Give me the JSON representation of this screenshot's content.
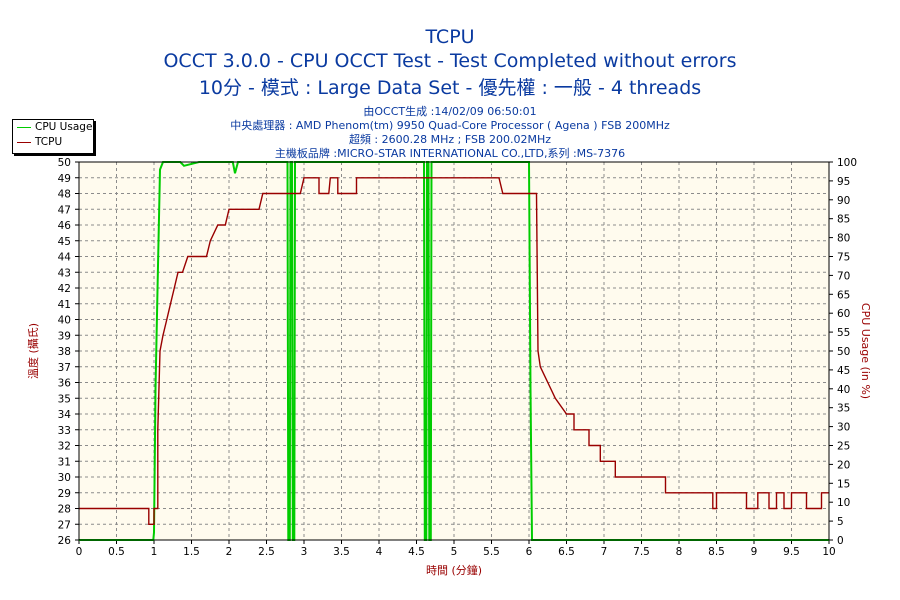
{
  "chart_data": {
    "type": "line",
    "title": "TCPU",
    "subtitle": "OCCT 3.0.0 - CPU OCCT Test - Test Completed without errors",
    "subtitle2": "10分 - 模式 : Large Data Set - 優先權 : 一般 - 4 threads",
    "info_lines": [
      "由OCCT生成 :14/02/09 06:50:01",
      "中央處理器 : AMD Phenom(tm) 9950 Quad-Core Processor ( Agena ) FSB 200MHz",
      "超頻 : 2600.28 MHz ; FSB 200.02MHz",
      "主機板品牌 :MICRO-STAR INTERNATIONAL CO.,LTD,系列 :MS-7376"
    ],
    "xlabel": "時間 (分鐘)",
    "ylabel_left": "溫度 (攝氏)",
    "ylabel_right": "CPU Usage (in %)",
    "xlim": [
      0,
      10
    ],
    "ylim_left": [
      26,
      50
    ],
    "ylim_right": [
      0,
      100
    ],
    "x_ticks": [
      "0",
      "0.5",
      "1",
      "1.5",
      "2",
      "2.5",
      "3",
      "3.5",
      "4",
      "4.5",
      "5",
      "5.5",
      "6",
      "6.5",
      "7",
      "7.5",
      "8",
      "8.5",
      "9",
      "9.5",
      "10"
    ],
    "y_left_ticks": [
      "26",
      "27",
      "28",
      "29",
      "30",
      "31",
      "32",
      "33",
      "34",
      "35",
      "36",
      "37",
      "38",
      "39",
      "40",
      "41",
      "42",
      "43",
      "44",
      "45",
      "46",
      "47",
      "48",
      "49",
      "50"
    ],
    "y_right_ticks": [
      "0",
      "5",
      "10",
      "15",
      "20",
      "25",
      "30",
      "35",
      "40",
      "45",
      "50",
      "55",
      "60",
      "65",
      "70",
      "75",
      "80",
      "85",
      "90",
      "95",
      "100"
    ],
    "grid": true,
    "legend_position": "top-left",
    "colors": {
      "cpu_usage": "#00cc00",
      "tcpu": "#990000",
      "plot_bg": "#fffbee",
      "text": "#0a3aa0",
      "axis_label": "#990000"
    },
    "series": [
      {
        "name": "CPU Usage",
        "axis": "right",
        "points": [
          [
            0,
            0
          ],
          [
            0.99,
            0
          ],
          [
            1.0,
            2
          ],
          [
            1.02,
            40
          ],
          [
            1.05,
            70
          ],
          [
            1.08,
            98
          ],
          [
            1.12,
            100
          ],
          [
            1.35,
            100
          ],
          [
            1.4,
            99
          ],
          [
            1.6,
            100
          ],
          [
            1.9,
            100
          ],
          [
            2.05,
            100
          ],
          [
            2.08,
            97
          ],
          [
            2.12,
            100
          ],
          [
            2.5,
            100
          ],
          [
            2.78,
            100
          ],
          [
            2.79,
            0
          ],
          [
            2.81,
            0
          ],
          [
            2.82,
            100
          ],
          [
            2.84,
            100
          ],
          [
            2.85,
            0
          ],
          [
            2.87,
            0
          ],
          [
            2.88,
            100
          ],
          [
            3.5,
            100
          ],
          [
            4.0,
            100
          ],
          [
            4.6,
            100
          ],
          [
            4.61,
            0
          ],
          [
            4.63,
            0
          ],
          [
            4.64,
            100
          ],
          [
            4.66,
            100
          ],
          [
            4.67,
            0
          ],
          [
            4.69,
            0
          ],
          [
            4.7,
            100
          ],
          [
            5.4,
            100
          ],
          [
            6.0,
            100
          ],
          [
            6.02,
            40
          ],
          [
            6.04,
            0
          ],
          [
            10,
            0
          ]
        ]
      },
      {
        "name": "TCPU",
        "axis": "left",
        "points": [
          [
            0,
            28
          ],
          [
            0.93,
            28
          ],
          [
            0.93,
            27
          ],
          [
            1.0,
            27
          ],
          [
            1.0,
            28
          ],
          [
            1.05,
            28
          ],
          [
            1.05,
            33
          ],
          [
            1.08,
            38
          ],
          [
            1.12,
            39
          ],
          [
            1.17,
            40
          ],
          [
            1.22,
            41
          ],
          [
            1.27,
            42
          ],
          [
            1.32,
            43
          ],
          [
            1.38,
            43
          ],
          [
            1.45,
            44
          ],
          [
            1.7,
            44
          ],
          [
            1.75,
            45
          ],
          [
            1.85,
            46
          ],
          [
            1.95,
            46
          ],
          [
            2.0,
            47
          ],
          [
            2.4,
            47
          ],
          [
            2.45,
            48
          ],
          [
            2.95,
            48
          ],
          [
            3.0,
            49
          ],
          [
            3.2,
            49
          ],
          [
            3.2,
            48
          ],
          [
            3.33,
            48
          ],
          [
            3.35,
            49
          ],
          [
            3.45,
            49
          ],
          [
            3.45,
            48
          ],
          [
            3.7,
            48
          ],
          [
            3.7,
            49
          ],
          [
            5.6,
            49
          ],
          [
            5.65,
            48
          ],
          [
            6.1,
            48
          ],
          [
            6.12,
            38
          ],
          [
            6.15,
            37
          ],
          [
            6.25,
            36
          ],
          [
            6.35,
            35
          ],
          [
            6.5,
            34
          ],
          [
            6.6,
            34
          ],
          [
            6.6,
            33
          ],
          [
            6.8,
            33
          ],
          [
            6.8,
            32
          ],
          [
            6.95,
            32
          ],
          [
            6.95,
            31
          ],
          [
            7.15,
            31
          ],
          [
            7.15,
            30
          ],
          [
            7.82,
            30
          ],
          [
            7.82,
            29
          ],
          [
            8.45,
            29
          ],
          [
            8.45,
            28
          ],
          [
            8.5,
            28
          ],
          [
            8.5,
            29
          ],
          [
            8.9,
            29
          ],
          [
            8.9,
            28
          ],
          [
            9.05,
            28
          ],
          [
            9.05,
            29
          ],
          [
            9.2,
            29
          ],
          [
            9.2,
            28
          ],
          [
            9.3,
            28
          ],
          [
            9.3,
            29
          ],
          [
            9.4,
            29
          ],
          [
            9.4,
            28
          ],
          [
            9.5,
            28
          ],
          [
            9.5,
            29
          ],
          [
            9.7,
            29
          ],
          [
            9.7,
            28
          ],
          [
            9.9,
            28
          ],
          [
            9.9,
            29
          ],
          [
            10,
            29
          ]
        ]
      }
    ]
  }
}
